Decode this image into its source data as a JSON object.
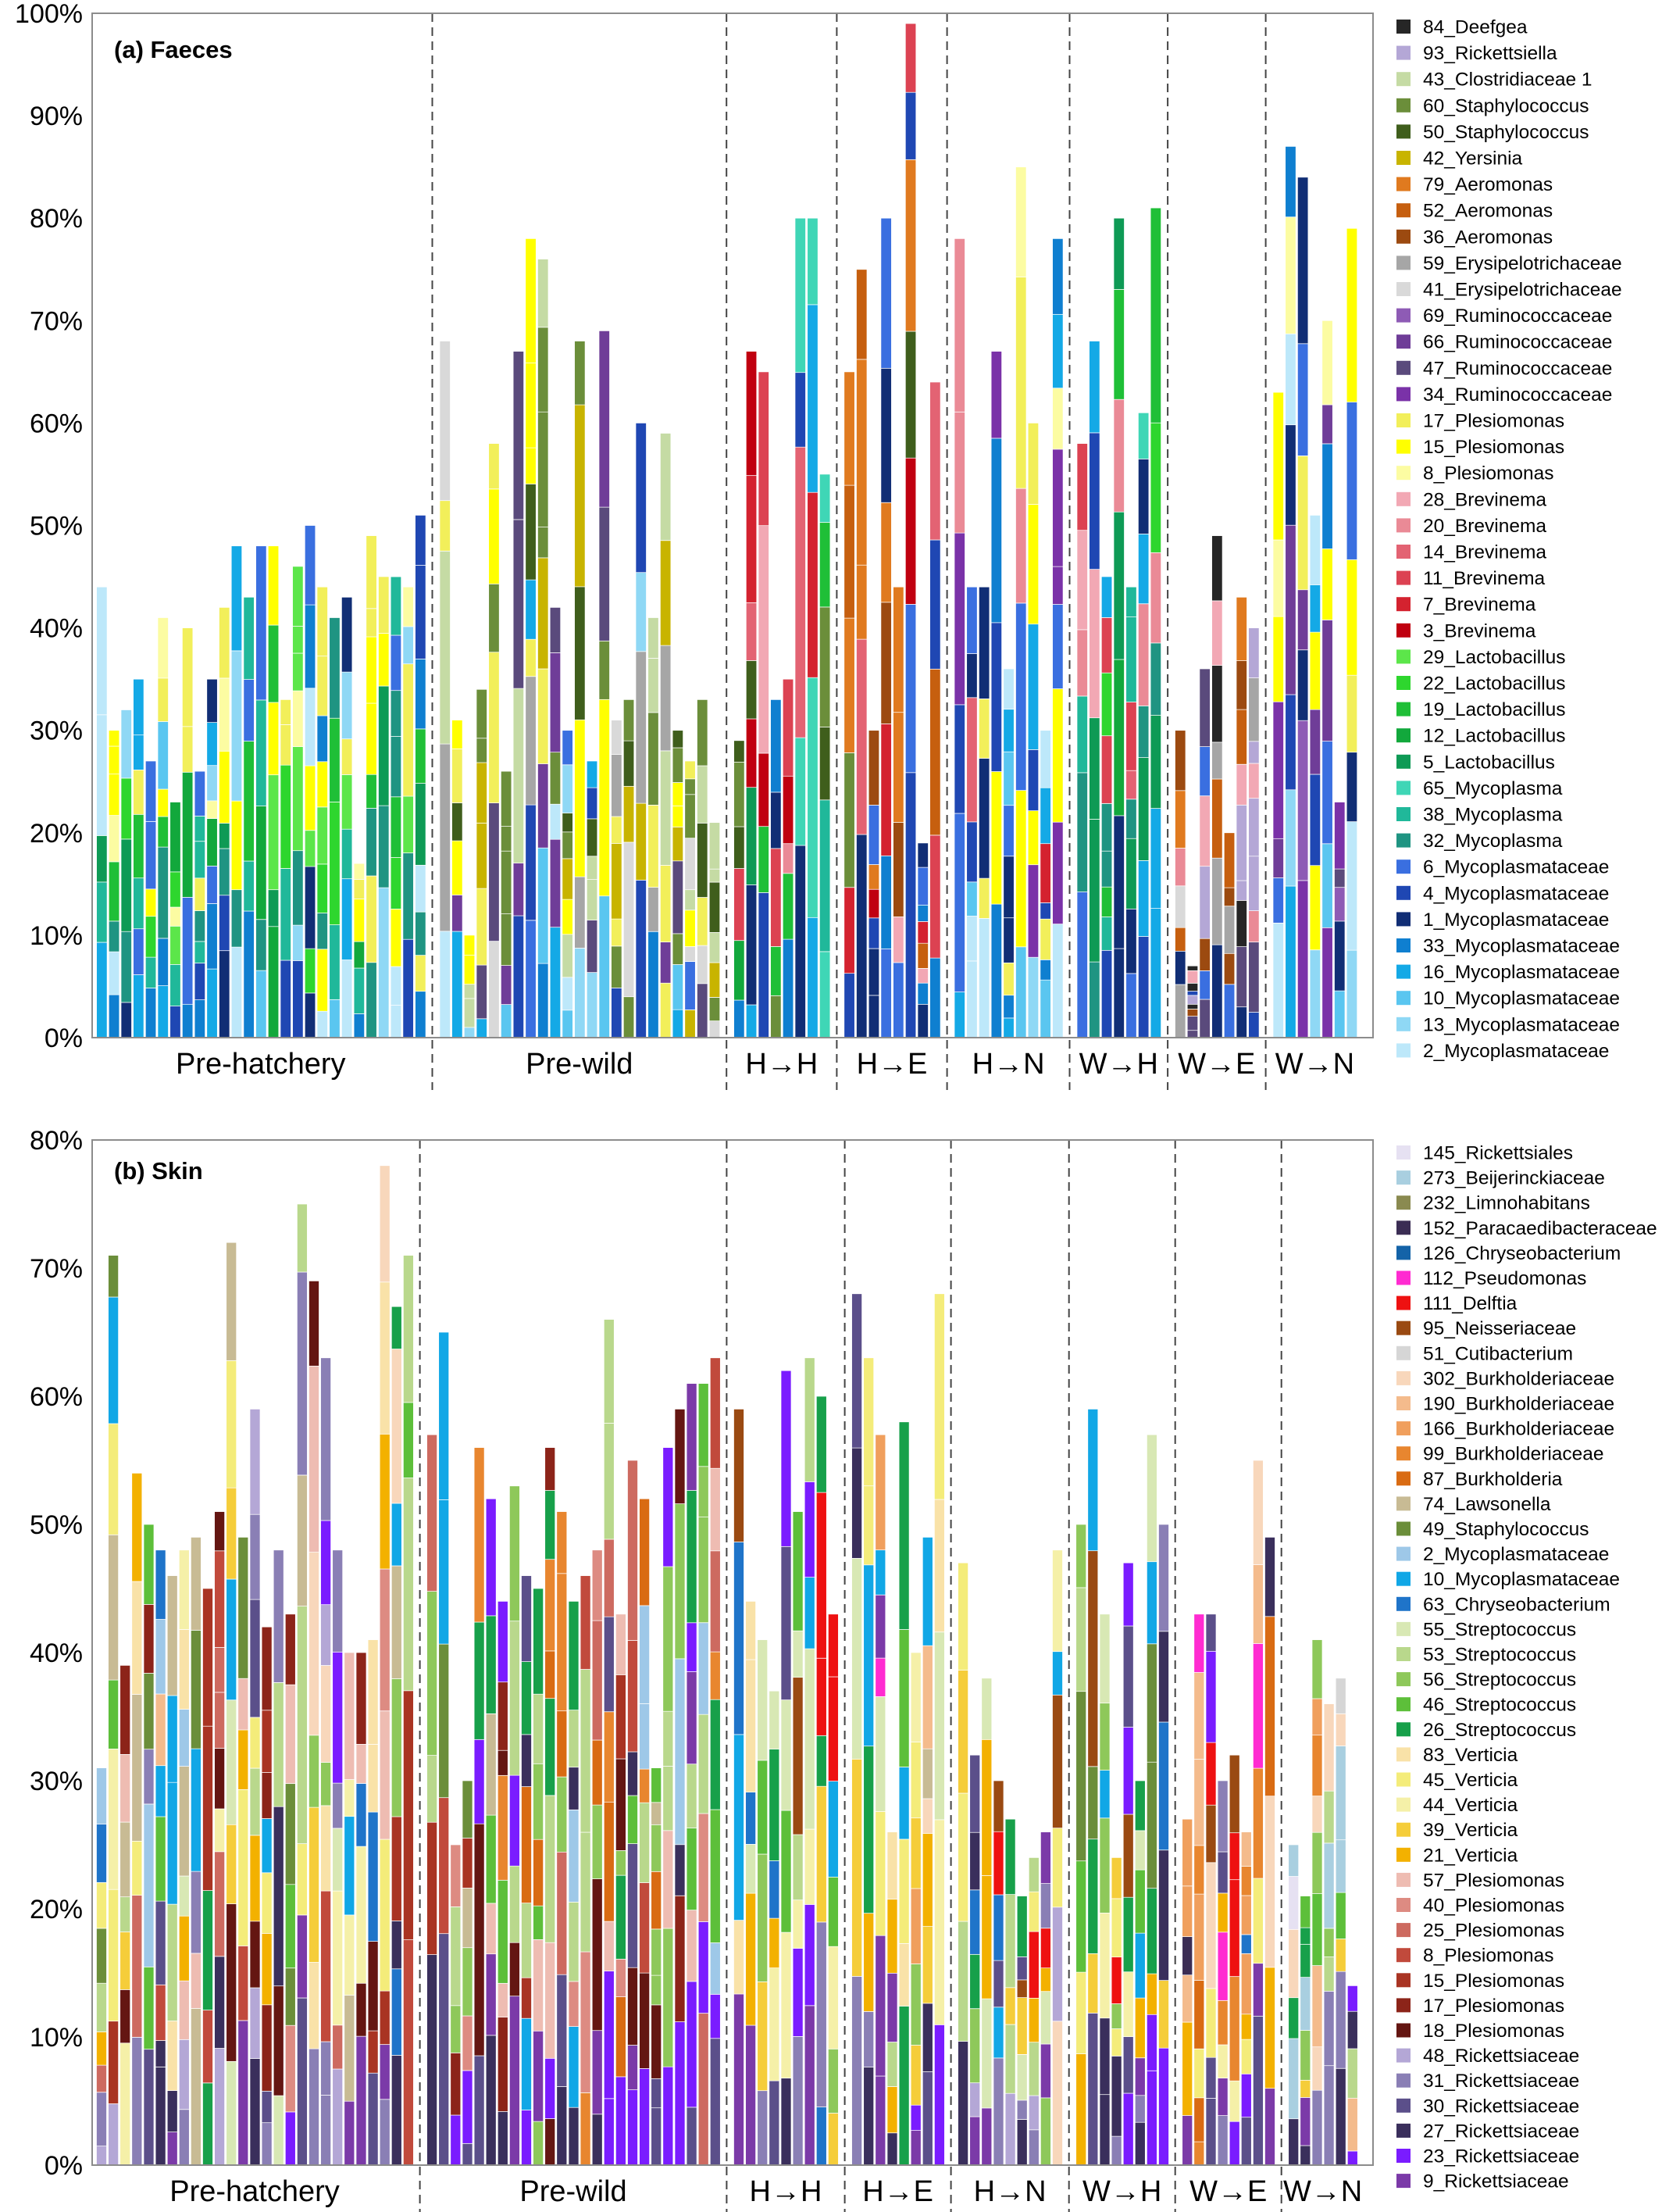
{
  "chart_data": [
    {
      "type": "bar",
      "stacked": true,
      "title": "(a) Faeces",
      "xlabel": "",
      "ylabel": "",
      "ylim": [
        0,
        100
      ],
      "yticks": [
        "0%",
        "10%",
        "20%",
        "30%",
        "40%",
        "50%",
        "60%",
        "70%",
        "80%",
        "90%",
        "100%"
      ],
      "grid": false,
      "legend_position": "right",
      "groups": [
        {
          "label": "Pre-hatchery",
          "totals": [
            44,
            30,
            32,
            35,
            27,
            41,
            23,
            40,
            26,
            35,
            42,
            48,
            43,
            48,
            48,
            33,
            46,
            50,
            44,
            41,
            43,
            17,
            49,
            45,
            45,
            44,
            51
          ]
        },
        {
          "label": "Pre-wild",
          "totals": [
            68,
            31,
            10,
            34,
            58,
            26,
            67,
            78,
            76,
            42,
            30,
            68,
            27,
            69,
            31,
            33,
            60,
            41,
            59,
            30,
            27,
            33,
            21
          ]
        },
        {
          "label": "H→H",
          "totals": [
            29,
            67,
            65,
            33,
            35,
            80,
            80,
            55
          ]
        },
        {
          "label": "H→E",
          "totals": [
            65,
            75,
            30,
            80,
            44,
            99,
            19,
            64
          ]
        },
        {
          "label": "H→N",
          "totals": [
            78,
            44,
            44,
            67,
            36,
            85,
            60,
            30,
            78
          ]
        },
        {
          "label": "W→H",
          "totals": [
            58,
            68,
            45,
            80,
            44,
            61,
            81
          ]
        },
        {
          "label": "W→E",
          "totals": [
            30,
            7,
            36,
            49,
            20,
            43,
            40
          ]
        },
        {
          "label": "W→N",
          "totals": [
            63,
            87,
            84,
            51,
            70,
            23,
            79
          ]
        }
      ],
      "series_legend": [
        {
          "name": "84_Deefgea",
          "color": "#262626"
        },
        {
          "name": "93_Rickettsiella",
          "color": "#b4a7d6"
        },
        {
          "name": "43_Clostridiaceae 1",
          "color": "#c5dba4"
        },
        {
          "name": "60_Staphylococcus",
          "color": "#6b8e3a"
        },
        {
          "name": "50_Staphylococcus",
          "color": "#3f5e1c"
        },
        {
          "name": "42_Yersinia",
          "color": "#c8b400"
        },
        {
          "name": "79_Aeromonas",
          "color": "#e07a1f"
        },
        {
          "name": "52_Aeromonas",
          "color": "#c65f0f"
        },
        {
          "name": "36_Aeromonas",
          "color": "#9c4a10"
        },
        {
          "name": "59_Erysipelotrichaceae",
          "color": "#a6a6a6"
        },
        {
          "name": "41_Erysipelotrichaceae",
          "color": "#d9d9d9"
        },
        {
          "name": "69_Ruminococcaceae",
          "color": "#8e5bb5"
        },
        {
          "name": "66_Ruminococcaceae",
          "color": "#6f3d98"
        },
        {
          "name": "47_Ruminococcaceae",
          "color": "#5a4a7c"
        },
        {
          "name": "34_Ruminococcaceae",
          "color": "#7a32a8"
        },
        {
          "name": "17_Plesiomonas",
          "color": "#f2ef5a"
        },
        {
          "name": "15_Plesiomonas",
          "color": "#ffff00"
        },
        {
          "name": "8_Plesiomonas",
          "color": "#fcfca2"
        },
        {
          "name": "28_Brevinema",
          "color": "#f2a8b4"
        },
        {
          "name": "20_Brevinema",
          "color": "#ea8a96"
        },
        {
          "name": "14_Brevinema",
          "color": "#e36373"
        },
        {
          "name": "11_Brevinema",
          "color": "#dc4252"
        },
        {
          "name": "7_Brevinema",
          "color": "#d4222f"
        },
        {
          "name": "3_Brevinema",
          "color": "#c00010"
        },
        {
          "name": "29_Lactobacillus",
          "color": "#5ce64a"
        },
        {
          "name": "22_Lactobacillus",
          "color": "#2ed62e"
        },
        {
          "name": "19_Lactobacillus",
          "color": "#1fbf37"
        },
        {
          "name": "12_Lactobacillus",
          "color": "#12a83c"
        },
        {
          "name": "5_Lactobacillus",
          "color": "#0e9a55"
        },
        {
          "name": "65_Mycoplasma",
          "color": "#3fd6b6"
        },
        {
          "name": "38_Mycoplasma",
          "color": "#20b89a"
        },
        {
          "name": "32_Mycoplasma",
          "color": "#1f9482"
        },
        {
          "name": "6_Mycoplasmataceae",
          "color": "#3a6fe0"
        },
        {
          "name": "4_Mycoplasmataceae",
          "color": "#1f47b3"
        },
        {
          "name": "1_Mycoplasmataceae",
          "color": "#112e75"
        },
        {
          "name": "33_Mycoplasmataceae",
          "color": "#0f7fd0"
        },
        {
          "name": "16_Mycoplasmataceae",
          "color": "#14a9e6"
        },
        {
          "name": "10_Mycoplasmataceae",
          "color": "#5ac6f0"
        },
        {
          "name": "13_Mycoplasmataceae",
          "color": "#8fd8f5"
        },
        {
          "name": "2_Mycoplasmataceae",
          "color": "#bde8fa"
        }
      ]
    },
    {
      "type": "bar",
      "stacked": true,
      "title": "(b) Skin",
      "xlabel": "",
      "ylabel": "",
      "ylim": [
        0,
        80
      ],
      "yticks": [
        "0%",
        "10%",
        "20%",
        "30%",
        "40%",
        "50%",
        "60%",
        "70%",
        "80%"
      ],
      "grid": false,
      "legend_position": "right",
      "groups": [
        {
          "label": "Pre-hatchery",
          "totals": [
            31,
            71,
            39,
            54,
            50,
            48,
            46,
            48,
            49,
            45,
            51,
            72,
            49,
            59,
            42,
            48,
            43,
            75,
            69,
            63,
            48,
            40,
            40,
            41,
            78,
            67,
            71
          ]
        },
        {
          "label": "Pre-wild",
          "totals": [
            57,
            65,
            25,
            30,
            56,
            52,
            44,
            53,
            46,
            45,
            56,
            51,
            44,
            46,
            48,
            66,
            43,
            55,
            52,
            31,
            56,
            59,
            61,
            61,
            63
          ]
        },
        {
          "label": "H→H",
          "totals": [
            59,
            44,
            41,
            37,
            62,
            51,
            63,
            60,
            43
          ]
        },
        {
          "label": "H→E",
          "totals": [
            68,
            63,
            57,
            26,
            58,
            40,
            49,
            68
          ]
        },
        {
          "label": "H→N",
          "totals": [
            47,
            32,
            38,
            30,
            27,
            21,
            24,
            26,
            48
          ]
        },
        {
          "label": "W→H",
          "totals": [
            50,
            59,
            43,
            24,
            47,
            30,
            57,
            50
          ]
        },
        {
          "label": "W→E",
          "totals": [
            27,
            43,
            43,
            30,
            32,
            26,
            55,
            49
          ]
        },
        {
          "label": "W→N",
          "totals": [
            25,
            21,
            41,
            36,
            38,
            14
          ]
        }
      ],
      "series_legend": [
        {
          "name": "145_Rickettsiales",
          "color": "#e6e1f2"
        },
        {
          "name": "273_Beijerinckiaceae",
          "color": "#a9cfe0"
        },
        {
          "name": "232_Limnohabitans",
          "color": "#8a8a50"
        },
        {
          "name": "152_Paracaedibacteraceae",
          "color": "#3b2d54"
        },
        {
          "name": "126_Chryseobacterium",
          "color": "#1463a8"
        },
        {
          "name": "112_Pseudomonas",
          "color": "#ff2bd1"
        },
        {
          "name": "111_Delftia",
          "color": "#ee1111"
        },
        {
          "name": "95_Neisseriaceae",
          "color": "#9a4a12"
        },
        {
          "name": "51_Cutibacterium",
          "color": "#d6d6d6"
        },
        {
          "name": "302_Burkholderiaceae",
          "color": "#f8d7bb"
        },
        {
          "name": "190_Burkholderiaceae",
          "color": "#f4bb8c"
        },
        {
          "name": "166_Burkholderiaceae",
          "color": "#f09f5d"
        },
        {
          "name": "99_Burkholderiaceae",
          "color": "#e8862f"
        },
        {
          "name": "87_Burkholderia",
          "color": "#d96b13"
        },
        {
          "name": "74_Lawsonella",
          "color": "#c8bb94"
        },
        {
          "name": "49_Staphylococcus",
          "color": "#6b8e3a"
        },
        {
          "name": "2_Mycoplasmataceae",
          "color": "#9ec8e8"
        },
        {
          "name": "10_Mycoplasmataceae",
          "color": "#11a7e6"
        },
        {
          "name": "63_Chryseobacterium",
          "color": "#1f74c9"
        },
        {
          "name": "55_Streptococcus",
          "color": "#d8e8b4"
        },
        {
          "name": "53_Streptococcus",
          "color": "#b9d88c"
        },
        {
          "name": "56_Streptococcus",
          "color": "#8ec85a"
        },
        {
          "name": "46_Streptococcus",
          "color": "#5dbf3a"
        },
        {
          "name": "26_Streptococcus",
          "color": "#17a04a"
        },
        {
          "name": "83_Verticia",
          "color": "#f9e2a8"
        },
        {
          "name": "45_Verticia",
          "color": "#f4ec7a"
        },
        {
          "name": "44_Verticia",
          "color": "#f5f0a8"
        },
        {
          "name": "39_Verticia",
          "color": "#f5cd3a"
        },
        {
          "name": "21_Verticia",
          "color": "#f3b100"
        },
        {
          "name": "57_Plesiomonas",
          "color": "#eebcb2"
        },
        {
          "name": "40_Plesiomonas",
          "color": "#dd8b82"
        },
        {
          "name": "25_Plesiomonas",
          "color": "#cd6a60"
        },
        {
          "name": "8_Plesiomonas",
          "color": "#c14a3c"
        },
        {
          "name": "15_Plesiomonas",
          "color": "#a93423"
        },
        {
          "name": "17_Plesiomonas",
          "color": "#8c2419"
        },
        {
          "name": "18_Plesiomonas",
          "color": "#641612"
        },
        {
          "name": "48_Rickettsiaceae",
          "color": "#b4a7d6"
        },
        {
          "name": "31_Rickettsiaceae",
          "color": "#8a7fb5"
        },
        {
          "name": "30_Rickettsiaceae",
          "color": "#5b4f8a"
        },
        {
          "name": "27_Rickettsiaceae",
          "color": "#3a2f5c"
        },
        {
          "name": "23_Rickettsiaceae",
          "color": "#7a1cff"
        },
        {
          "name": "9_Rickettsiaceae",
          "color": "#7b3aa8"
        }
      ]
    }
  ]
}
